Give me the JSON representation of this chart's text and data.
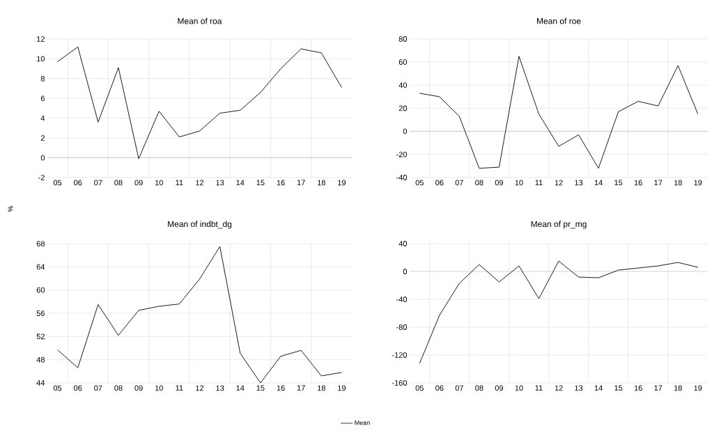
{
  "chart_data": [
    {
      "type": "line",
      "title": "Mean of roa",
      "ylabel": "%",
      "categories": [
        "05",
        "06",
        "07",
        "08",
        "09",
        "10",
        "11",
        "12",
        "13",
        "14",
        "15",
        "16",
        "17",
        "18",
        "19"
      ],
      "series": [
        {
          "name": "Mean",
          "color": "#000000",
          "values": [
            9.7,
            11.2,
            3.6,
            9.1,
            -0.1,
            4.7,
            2.1,
            2.7,
            4.5,
            4.8,
            6.6,
            9.0,
            11.0,
            10.6,
            7.1
          ]
        }
      ],
      "ylim": [
        -2,
        12
      ],
      "yticks": [
        -2,
        0,
        2,
        4,
        6,
        8,
        10,
        12
      ],
      "grid": true,
      "legend": "bottom"
    },
    {
      "type": "line",
      "title": "Mean of roe",
      "categories": [
        "05",
        "06",
        "07",
        "08",
        "09",
        "10",
        "11",
        "12",
        "13",
        "14",
        "15",
        "16",
        "17",
        "18",
        "19"
      ],
      "series": [
        {
          "color": "#000000",
          "values": [
            33,
            30,
            13,
            -32,
            -31,
            65,
            15,
            -13,
            -3,
            -32,
            17,
            26,
            22,
            57,
            15
          ]
        }
      ],
      "ylim": [
        -40,
        80
      ],
      "yticks": [
        -40,
        -20,
        0,
        20,
        40,
        60,
        80
      ],
      "grid": true
    },
    {
      "type": "line",
      "title": "Mean of indbt_dg",
      "categories": [
        "05",
        "06",
        "07",
        "08",
        "09",
        "10",
        "11",
        "12",
        "13",
        "14",
        "15",
        "16",
        "17",
        "18",
        "19"
      ],
      "series": [
        {
          "color": "#000000",
          "values": [
            49.7,
            46.6,
            57.5,
            52.2,
            56.5,
            57.2,
            57.6,
            61.9,
            67.5,
            49.1,
            44.0,
            48.6,
            49.6,
            45.2,
            45.8
          ]
        }
      ],
      "ylim": [
        44,
        68
      ],
      "yticks": [
        44,
        48,
        52,
        56,
        60,
        64,
        68
      ],
      "grid": true
    },
    {
      "type": "line",
      "title": "Mean of pr_mg",
      "categories": [
        "05",
        "06",
        "07",
        "08",
        "09",
        "10",
        "11",
        "12",
        "13",
        "14",
        "15",
        "16",
        "17",
        "18",
        "19"
      ],
      "series": [
        {
          "color": "#000000",
          "values": [
            -132,
            -63,
            -17,
            10,
            -15,
            8,
            -39,
            15,
            -8,
            -9,
            2,
            5,
            8,
            13,
            6
          ]
        }
      ],
      "ylim": [
        -160,
        40
      ],
      "yticks": [
        -160,
        -120,
        -80,
        -40,
        0,
        40
      ],
      "grid": true
    }
  ]
}
